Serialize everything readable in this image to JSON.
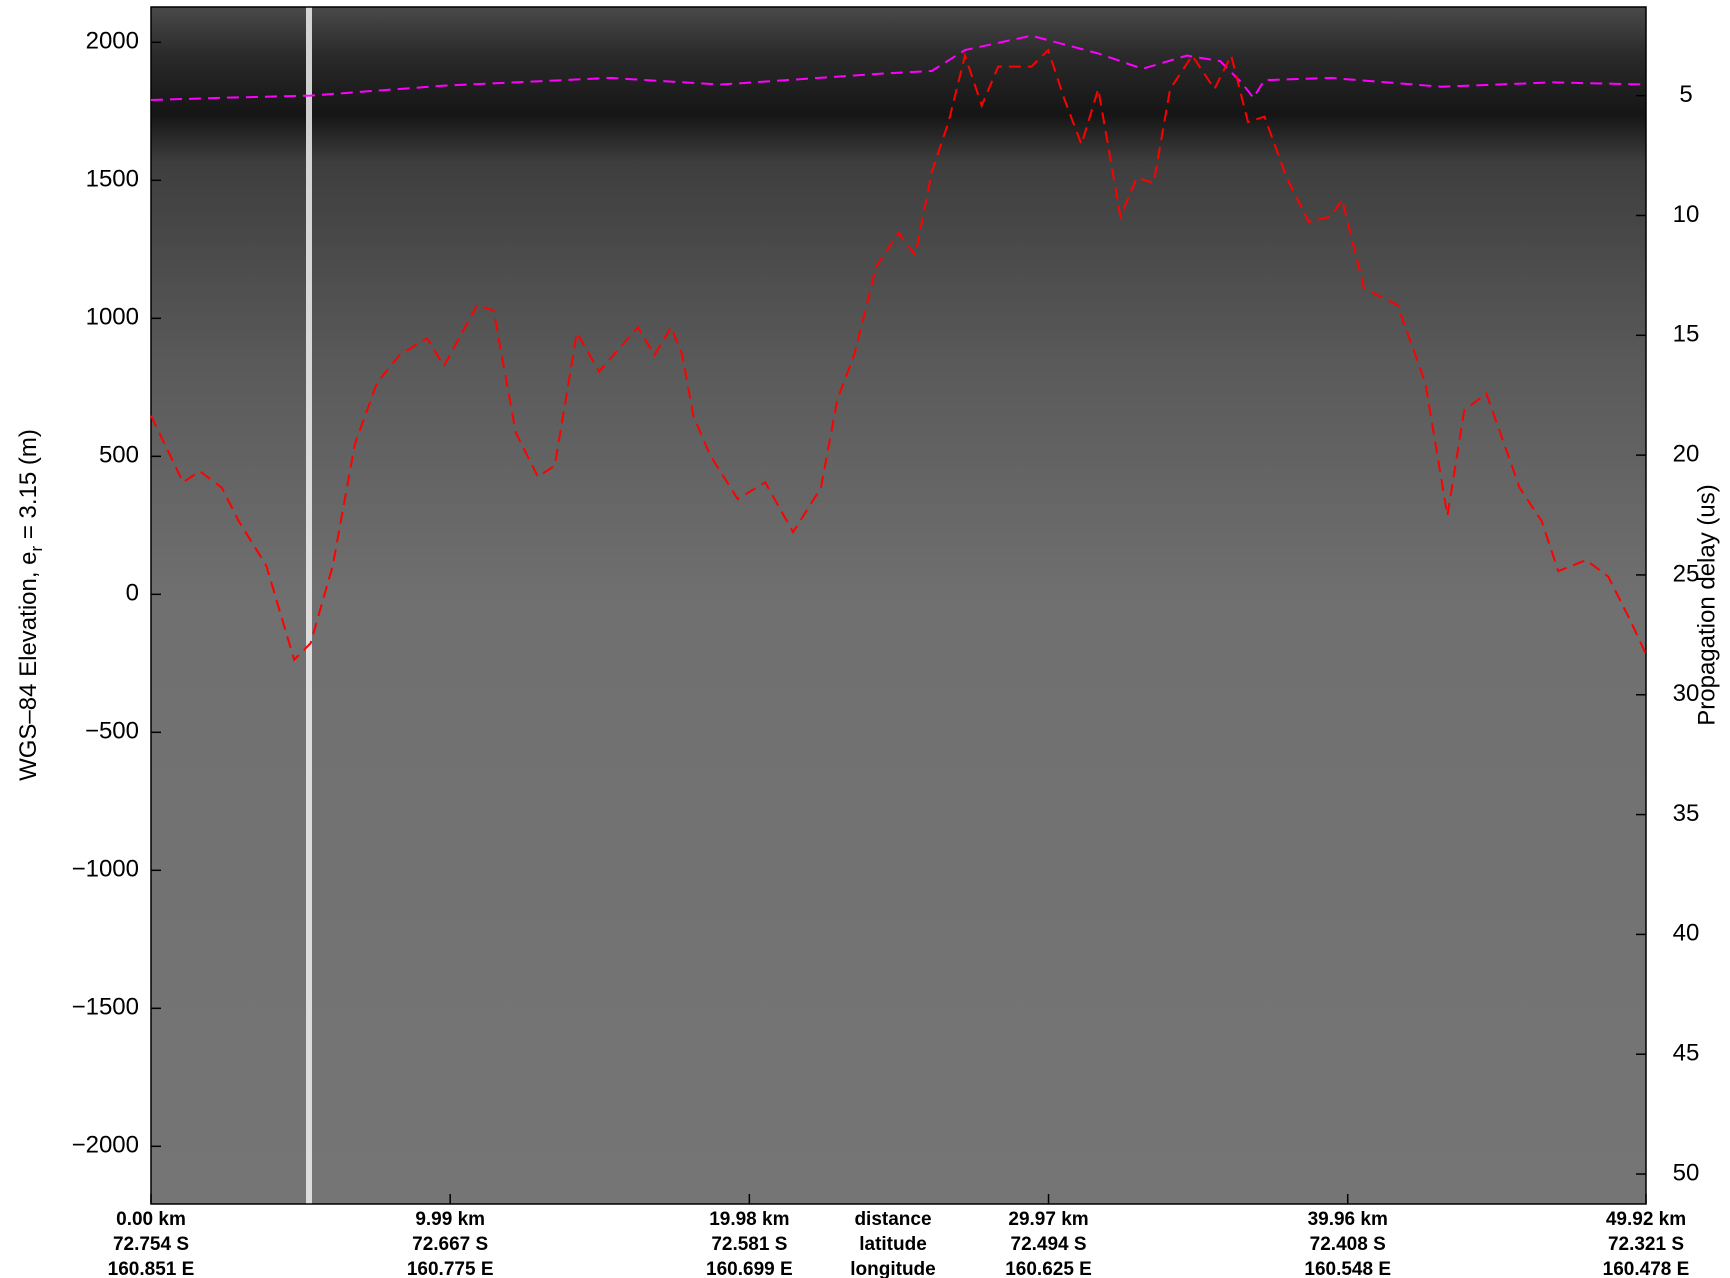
{
  "chart_data": {
    "type": "line",
    "y_label": [
      "WGS–84 Elevation, e",
      "r",
      " = 3.15 (m)"
    ],
    "y2_label": "Propagation delay (us)",
    "xlim": [
      0,
      49.92
    ],
    "xticks": [
      {
        "value": 0,
        "label": "0.00 km"
      },
      {
        "value": 9.99,
        "label": "9.99 km"
      },
      {
        "value": 19.98,
        "label": "19.98 km"
      },
      {
        "value": 29.97,
        "label": "29.97 km"
      },
      {
        "value": 39.96,
        "label": "39.96 km"
      },
      {
        "value": 49.92,
        "label": "49.92 km"
      }
    ],
    "latitudes": [
      "72.754 S",
      "72.667 S",
      "72.581 S",
      "72.494 S",
      "72.408 S",
      "72.321 S"
    ],
    "longitudes": [
      "160.851 E",
      "160.775 E",
      "160.699 E",
      "160.625 E",
      "160.548 E",
      "160.478 E"
    ],
    "row_labels": [
      "distance",
      "latitude",
      "longitude"
    ],
    "ylim": [
      -2209,
      2128
    ],
    "yticks": [
      {
        "value": -2000,
        "label": "−2000"
      },
      {
        "value": -1500,
        "label": "−1500"
      },
      {
        "value": -1000,
        "label": "−1000"
      },
      {
        "value": -500,
        "label": "−500"
      },
      0,
      500,
      1000,
      1500,
      2000
    ],
    "y2lim": [
      1.3,
      51.25
    ],
    "y2ticks": [
      5,
      10,
      15,
      20,
      25,
      30,
      35,
      40,
      45,
      50
    ],
    "series": [
      {
        "color": "#ff00ff",
        "x": [
          0,
          2.37,
          5.33,
          9.78,
          15.33,
          19.03,
          24.59,
          26.07,
          27.18,
          29.4,
          31.62,
          33.11,
          34.59,
          35.7,
          36.44,
          36.81,
          37.18,
          39.4,
          43.1,
          46.81,
          49.92
        ],
        "values": [
          1791,
          1799,
          1807,
          1843,
          1871,
          1847,
          1888,
          1896,
          1972,
          2024,
          1960,
          1904,
          1952,
          1932,
          1851,
          1799,
          1863,
          1871,
          1839,
          1855,
          1847
        ]
      },
      {
        "color": "#ff0000",
        "x": [
          0,
          1.07,
          1.63,
          2.37,
          2.93,
          3.85,
          4.78,
          5.33,
          6.07,
          6.81,
          7.55,
          8.3,
          9.22,
          9.78,
          10.89,
          11.44,
          12.18,
          12.92,
          13.48,
          14.22,
          14.96,
          16.26,
          16.81,
          17.37,
          17.74,
          18.11,
          18.66,
          19.59,
          20.51,
          21.44,
          22.37,
          22.92,
          23.48,
          24.22,
          24.96,
          25.52,
          26.07,
          26.63,
          27.18,
          27.74,
          28.29,
          29.4,
          29.96,
          30.51,
          31.07,
          31.63,
          32.37,
          32.92,
          33.48,
          34.03,
          34.77,
          35.51,
          36.07,
          36.63,
          37.18,
          37.92,
          38.66,
          39.4,
          39.77,
          40.51,
          41.62,
          42.55,
          43.29,
          43.85,
          44.59,
          45.7,
          46.44,
          46.99,
          47.92,
          48.66,
          49.4,
          49.92
        ],
        "values": [
          647,
          406,
          446,
          386,
          265,
          104,
          -237,
          -177,
          104,
          546,
          767,
          867,
          928,
          827,
          1048,
          1028,
          586,
          426,
          466,
          948,
          807,
          968,
          867,
          968,
          867,
          647,
          506,
          345,
          406,
          225,
          386,
          707,
          867,
          1189,
          1309,
          1229,
          1530,
          1711,
          1952,
          1771,
          1912,
          1912,
          1972,
          1791,
          1630,
          1831,
          1369,
          1510,
          1490,
          1831,
          1952,
          1831,
          1952,
          1711,
          1731,
          1510,
          1349,
          1369,
          1430,
          1108,
          1048,
          767,
          285,
          667,
          727,
          386,
          265,
          84,
          124,
          64,
          -96,
          -217
        ]
      }
    ]
  }
}
